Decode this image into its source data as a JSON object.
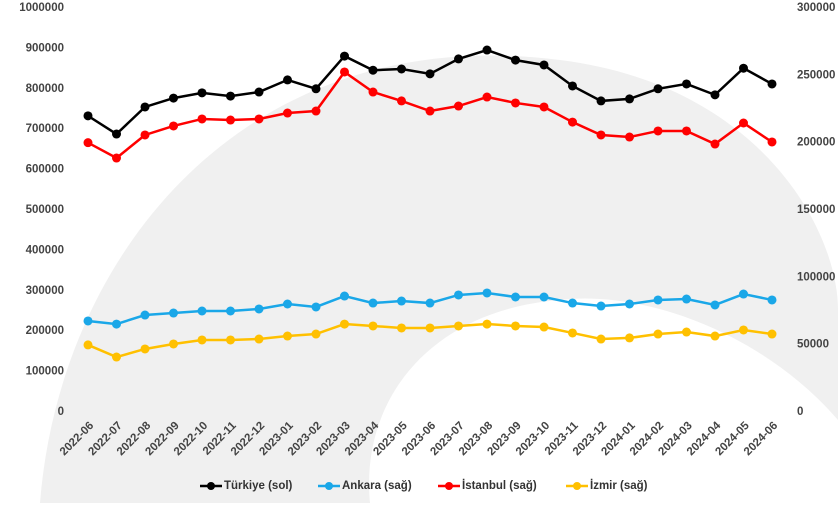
{
  "chart_data": {
    "type": "line",
    "categories": [
      "2022-06",
      "2022-07",
      "2022-08",
      "2022-09",
      "2022-10",
      "2022-11",
      "2022-12",
      "2023-01",
      "2023-02",
      "2023-03",
      "2023-04",
      "2023-05",
      "2023-06",
      "2023-07",
      "2023-08",
      "2023-09",
      "2023-10",
      "2023-11",
      "2023-12",
      "2024-01",
      "2024-02",
      "2024-03",
      "2024-04",
      "2024-05",
      "2024-06"
    ],
    "ylim": [
      0,
      1000000
    ],
    "yticks": [
      0,
      100000,
      200000,
      300000,
      400000,
      500000,
      600000,
      700000,
      800000,
      900000,
      1000000
    ],
    "y2lim": [
      0,
      300000
    ],
    "y2ticks": [
      0,
      50000,
      100000,
      150000,
      200000,
      250000,
      300000
    ],
    "legend": "bottom",
    "series": [
      {
        "name": "Türkiye (sol)",
        "color": "#000000",
        "values": [
          733000,
          688000,
          755000,
          777000,
          790000,
          782000,
          792000,
          822000,
          800000,
          881000,
          846000,
          849000,
          837000,
          874000,
          896000,
          871000,
          859000,
          807000,
          770000,
          775000,
          800000,
          812000,
          785000,
          851000,
          812000
        ]
      },
      {
        "name": "Ankara (sağ)",
        "color": "#1aa7e8",
        "axis": "y2",
        "values": [
          67600,
          65300,
          72000,
          73500,
          75000,
          75000,
          76500,
          80200,
          78000,
          86100,
          80900,
          82400,
          80900,
          86900,
          88400,
          85400,
          85400,
          80900,
          78700,
          80200,
          83200,
          83900,
          79500,
          87600,
          83200
        ]
      },
      {
        "name": "İstanbul (sağ)",
        "color": "#ff0000",
        "axis": "y2",
        "values": [
          200000,
          188600,
          205700,
          212400,
          217600,
          216800,
          217600,
          222000,
          223500,
          252500,
          237600,
          231000,
          223500,
          227200,
          233900,
          229500,
          226500,
          215300,
          205700,
          204200,
          208700,
          208700,
          199000,
          214600,
          200500
        ]
      },
      {
        "name": "İzmir (sağ)",
        "color": "#ffc000",
        "axis": "y2",
        "values": [
          49800,
          40800,
          46800,
          50500,
          53500,
          53500,
          54200,
          56400,
          57900,
          65300,
          63900,
          62400,
          62400,
          63900,
          65300,
          63900,
          63100,
          58700,
          54200,
          55000,
          57900,
          59400,
          56400,
          60900,
          57900
        ]
      }
    ]
  }
}
